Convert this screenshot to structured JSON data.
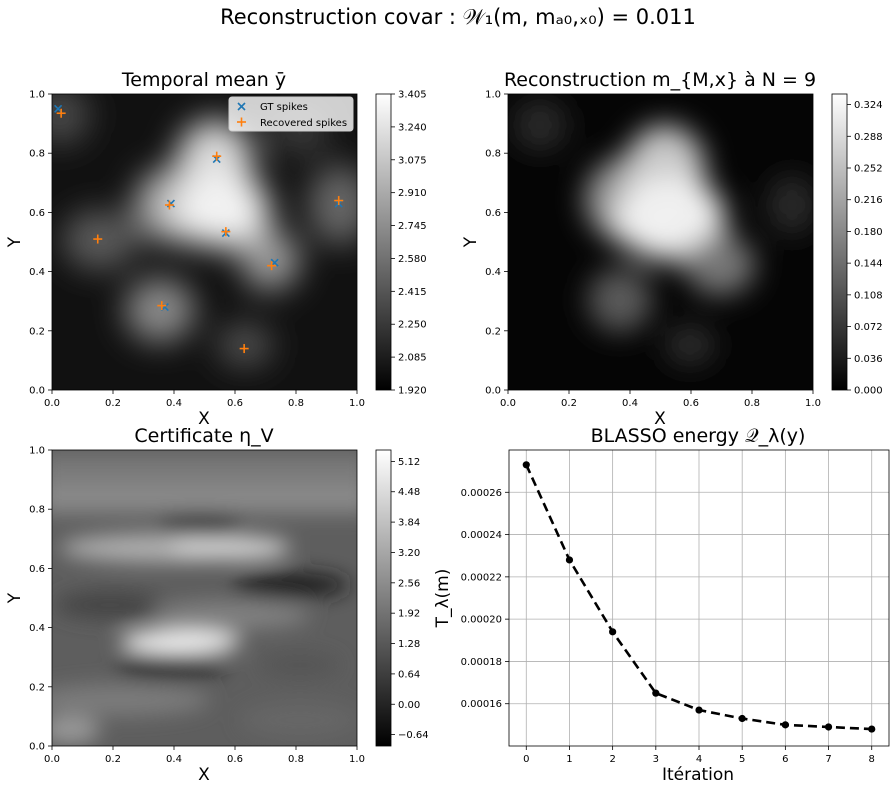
{
  "figure": {
    "suptitle": "Reconstruction covar : 𝒲₁(m, mₐ₀,ₓ₀) = 0.011"
  },
  "chart_data": [
    {
      "type": "heatmap",
      "title": "Temporal mean ȳ",
      "xlabel": "X",
      "ylabel": "Y",
      "xlim": [
        0,
        1
      ],
      "ylim": [
        0,
        1
      ],
      "x_ticks": [
        "0.0",
        "0.2",
        "0.4",
        "0.6",
        "0.8",
        "1.0"
      ],
      "y_ticks": [
        "0.0",
        "0.2",
        "0.4",
        "0.6",
        "0.8",
        "1.0"
      ],
      "colormap": "gray",
      "colorbar_range": [
        1.92,
        3.405
      ],
      "colorbar_ticks": [
        "1.920",
        "2.085",
        "2.250",
        "2.415",
        "2.580",
        "2.745",
        "2.910",
        "3.075",
        "3.240",
        "3.405"
      ],
      "legend_position": "upper right",
      "series": [
        {
          "name": "GT spikes",
          "marker": "x",
          "color": "#1f77b4",
          "points": [
            [
              0.02,
              0.95
            ],
            [
              0.39,
              0.63
            ],
            [
              0.54,
              0.78
            ],
            [
              0.57,
              0.53
            ],
            [
              0.73,
              0.43
            ],
            [
              0.94,
              0.63
            ],
            [
              0.37,
              0.28
            ]
          ]
        },
        {
          "name": "Recovered spikes",
          "marker": "+",
          "color": "#ff7f0e",
          "points": [
            [
              0.03,
              0.935
            ],
            [
              0.15,
              0.51
            ],
            [
              0.385,
              0.625
            ],
            [
              0.54,
              0.79
            ],
            [
              0.57,
              0.535
            ],
            [
              0.72,
              0.42
            ],
            [
              0.94,
              0.64
            ],
            [
              0.36,
              0.285
            ],
            [
              0.63,
              0.14
            ]
          ]
        }
      ]
    },
    {
      "type": "heatmap",
      "title": "Reconstruction m_{M,x} à N = 9",
      "xlabel": "X",
      "ylabel": "Y",
      "xlim": [
        0,
        1
      ],
      "ylim": [
        0,
        1
      ],
      "x_ticks": [
        "0.0",
        "0.2",
        "0.4",
        "0.6",
        "0.8",
        "1.0"
      ],
      "y_ticks": [
        "0.0",
        "0.2",
        "0.4",
        "0.6",
        "0.8",
        "1.0"
      ],
      "colormap": "gray",
      "colorbar_range": [
        0,
        0.336
      ],
      "colorbar_ticks": [
        "0.000",
        "0.036",
        "0.072",
        "0.108",
        "0.144",
        "0.180",
        "0.216",
        "0.252",
        "0.288",
        "0.324"
      ]
    },
    {
      "type": "heatmap",
      "title": "Certificate η_V",
      "xlabel": "X",
      "ylabel": "Y",
      "xlim": [
        0,
        1
      ],
      "ylim": [
        0,
        1
      ],
      "x_ticks": [
        "0.0",
        "0.2",
        "0.4",
        "0.6",
        "0.8",
        "1.0"
      ],
      "y_ticks": [
        "0.0",
        "0.2",
        "0.4",
        "0.6",
        "0.8",
        "1.0"
      ],
      "colormap": "gray",
      "colorbar_range": [
        -0.88,
        5.36
      ],
      "colorbar_ticks": [
        "−0.64",
        "0.00",
        "0.64",
        "1.28",
        "1.92",
        "2.56",
        "3.20",
        "3.84",
        "4.48",
        "5.12"
      ]
    },
    {
      "type": "line",
      "title": "BLASSO energy 𝒬_λ(y)",
      "xlabel": "Itération",
      "ylabel": "T_λ(m)",
      "x": [
        0,
        1,
        2,
        3,
        4,
        5,
        6,
        7,
        8
      ],
      "values": [
        0.000273,
        0.000228,
        0.000194,
        0.000165,
        0.000157,
        0.000153,
        0.00015,
        0.000149,
        0.000148
      ],
      "xlim": [
        -0.4,
        8.4
      ],
      "ylim": [
        0.00014,
        0.00028
      ],
      "x_ticks": [
        "0",
        "1",
        "2",
        "3",
        "4",
        "5",
        "6",
        "7",
        "8"
      ],
      "y_ticks": [
        "0.00016",
        "0.00018",
        "0.00020",
        "0.00022",
        "0.00024",
        "0.00026"
      ],
      "line_style": "dashed",
      "marker": "circle",
      "color": "#000000",
      "grid": true
    }
  ]
}
